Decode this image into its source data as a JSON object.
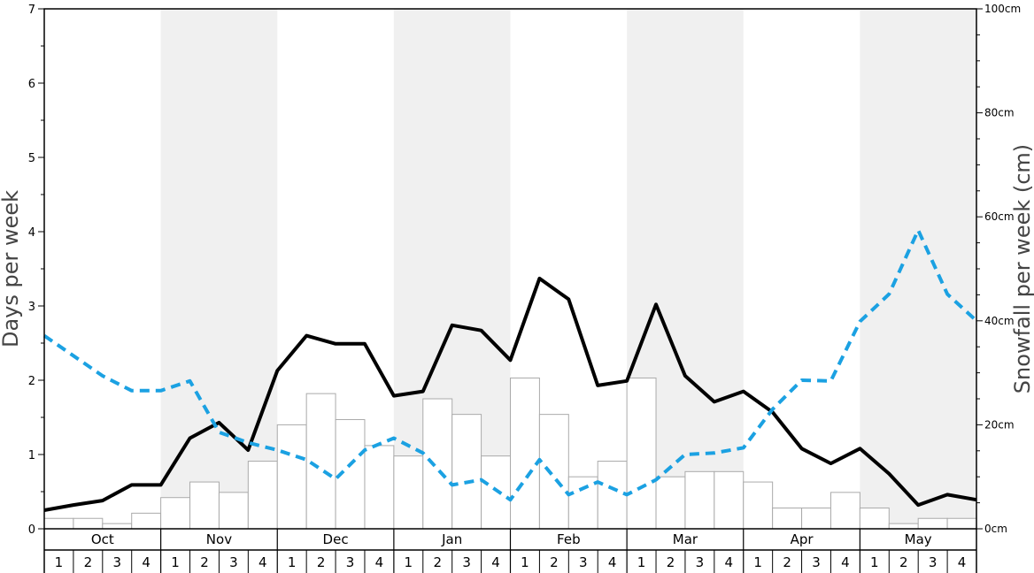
{
  "chart_data": {
    "type": "bar",
    "left_axis": {
      "label": "Days per week",
      "ticks": [
        "0",
        "1",
        "2",
        "3",
        "4",
        "5",
        "6",
        "7"
      ],
      "range": [
        0,
        7
      ]
    },
    "right_axis": {
      "label": "Snowfall per week (cm)",
      "ticks": [
        "0cm",
        "20cm",
        "40cm",
        "60cm",
        "80cm",
        "100cm"
      ],
      "range": [
        0,
        100
      ]
    },
    "months": [
      "Oct",
      "Nov",
      "Dec",
      "Jan",
      "Feb",
      "Mar",
      "Apr",
      "May"
    ],
    "weeks": [
      "1",
      "2",
      "3",
      "4"
    ],
    "shaded_months": [
      "Nov",
      "Jan",
      "Mar",
      "May"
    ],
    "colors": {
      "shade": "#f0f0f0",
      "bar_fill": "#ffffff",
      "bar_stroke": "#aaaaaa",
      "days_line": "#000000",
      "dashed_line": "#1ba1e2"
    },
    "series": [
      {
        "type": "bar",
        "axis": "right",
        "values": [
          2,
          2,
          1,
          3,
          6,
          9,
          7,
          13,
          20,
          26,
          21,
          16,
          14,
          25,
          22,
          14,
          29,
          22,
          10,
          13,
          29,
          10,
          11,
          11,
          9,
          4,
          4,
          7,
          4,
          1,
          2,
          2
        ]
      },
      {
        "type": "line",
        "axis": "left",
        "style": "solid",
        "values": [
          0.25,
          0.32,
          0.38,
          0.59,
          0.59,
          1.22,
          1.43,
          1.06,
          2.13,
          2.6,
          2.49,
          2.49,
          1.79,
          1.85,
          2.74,
          2.67,
          2.27,
          3.37,
          3.09,
          1.93,
          1.99,
          3.02,
          2.06,
          1.71,
          1.85,
          1.57,
          1.08,
          0.88,
          1.08,
          0.74,
          0.32,
          0.46,
          0.39
        ]
      },
      {
        "type": "line",
        "axis": "left",
        "style": "dashed",
        "values": [
          2.6,
          2.33,
          2.06,
          1.86,
          1.86,
          1.99,
          1.3,
          1.16,
          1.06,
          0.93,
          0.67,
          1.06,
          1.22,
          1.02,
          0.59,
          0.66,
          0.39,
          0.93,
          0.46,
          0.63,
          0.46,
          0.66,
          1.0,
          1.02,
          1.09,
          1.61,
          2.0,
          1.99,
          2.79,
          3.16,
          4.02,
          3.16,
          2.8
        ]
      }
    ]
  }
}
